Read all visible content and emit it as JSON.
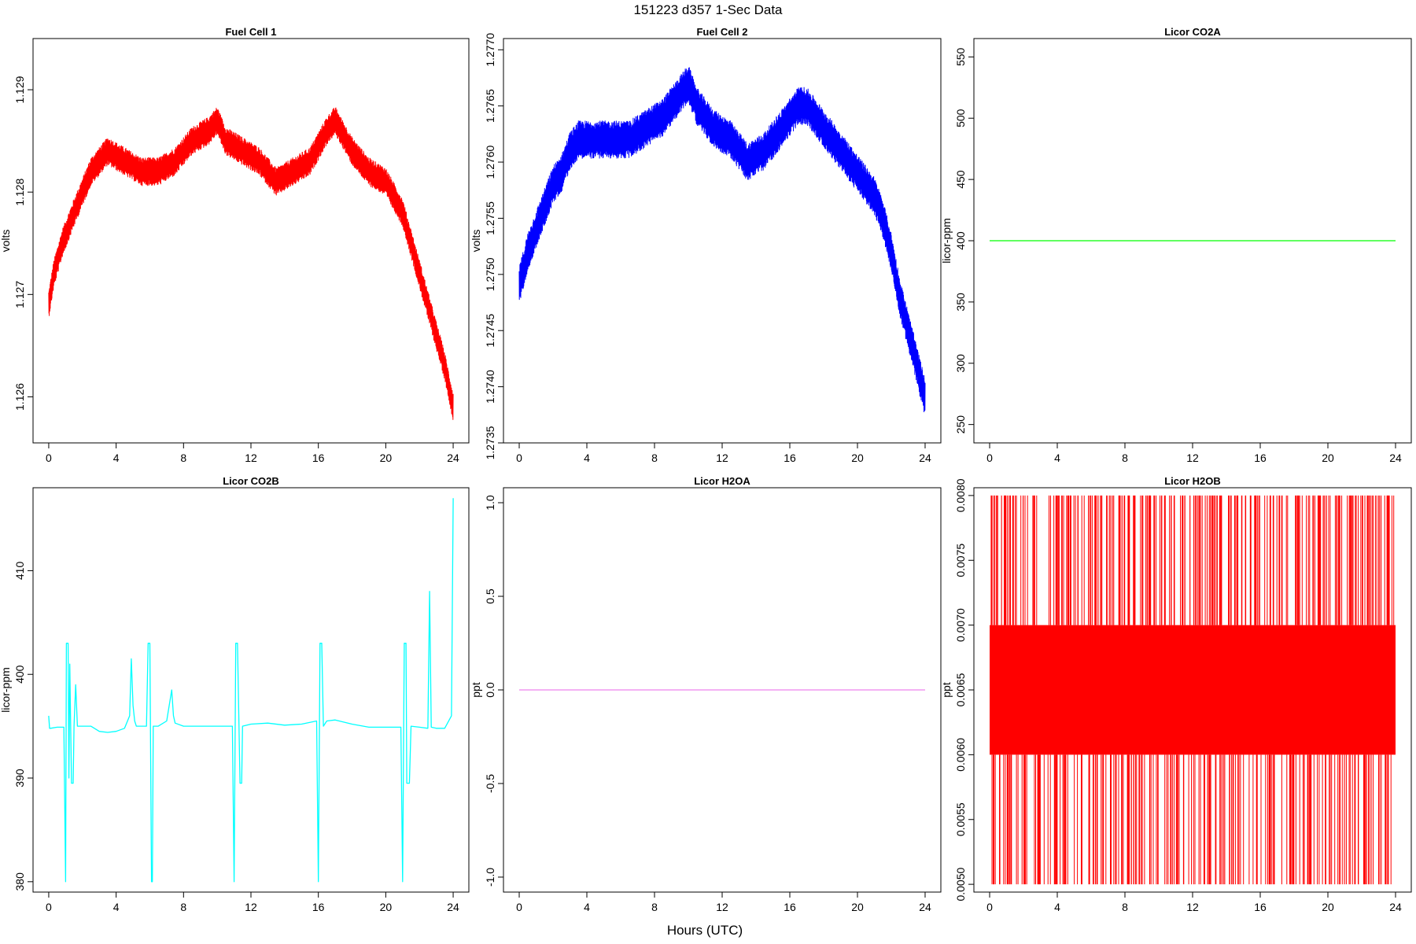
{
  "figure": {
    "title": "151223   d357   1-Sec Data",
    "xlabel": "Hours (UTC)"
  },
  "chart_data": [
    {
      "type": "line",
      "title": "Fuel Cell 1",
      "ylabel": "volts",
      "color": "#ff0000",
      "noise": 0.00028,
      "xlim": [
        0,
        24
      ],
      "ylim": [
        1.12555,
        1.1295
      ],
      "xticks": [
        0,
        4,
        8,
        12,
        16,
        20,
        24
      ],
      "yticks": [
        1.126,
        1.127,
        1.128,
        1.129
      ],
      "ytick_labels": [
        "1.126",
        "1.127",
        "1.128",
        "1.129"
      ],
      "series": [
        {
          "x": [
            0,
            0.3,
            0.8,
            1.5,
            2.5,
            3.5,
            4.5,
            5.5,
            6.5,
            7.5,
            8.5,
            9.5,
            10,
            10.5,
            11.5,
            12.5,
            13.5,
            14.5,
            15.5,
            16.5,
            17,
            18,
            19,
            20,
            21,
            21.5,
            22,
            22.5,
            23,
            23.5,
            24
          ],
          "y": [
            1.1269,
            1.1272,
            1.1275,
            1.1278,
            1.1282,
            1.1284,
            1.1283,
            1.1282,
            1.1282,
            1.1283,
            1.1285,
            1.1286,
            1.1287,
            1.1285,
            1.1284,
            1.1283,
            1.1281,
            1.1282,
            1.1283,
            1.1286,
            1.1287,
            1.1284,
            1.1282,
            1.1281,
            1.1278,
            1.1275,
            1.1272,
            1.1269,
            1.1266,
            1.1263,
            1.1259
          ]
        }
      ]
    },
    {
      "type": "line",
      "title": "Fuel Cell 2",
      "ylabel": "volts",
      "color": "#0000ff",
      "noise": 0.00034,
      "xlim": [
        0,
        24
      ],
      "ylim": [
        1.2735,
        1.2771
      ],
      "xticks": [
        0,
        4,
        8,
        12,
        16,
        20,
        24
      ],
      "yticks": [
        1.2735,
        1.274,
        1.2745,
        1.275,
        1.2755,
        1.276,
        1.2765,
        1.277
      ],
      "ytick_labels": [
        "1.2735",
        "1.2740",
        "1.2745",
        "1.2750",
        "1.2755",
        "1.2760",
        "1.2765",
        "1.2770"
      ],
      "series": [
        {
          "x": [
            0,
            0.5,
            1,
            1.5,
            2,
            2.5,
            3,
            3.5,
            4.5,
            5.5,
            6.5,
            7.5,
            8.5,
            9.5,
            10,
            10.5,
            11.5,
            12.5,
            13.5,
            14.5,
            15.5,
            16.5,
            17,
            18,
            19,
            20,
            20.5,
            21,
            21.5,
            22,
            22.5,
            23,
            23.5,
            24
          ],
          "y": [
            1.2749,
            1.2752,
            1.2754,
            1.2756,
            1.2758,
            1.2759,
            1.2761,
            1.2762,
            1.2762,
            1.2762,
            1.2762,
            1.2763,
            1.2764,
            1.2766,
            1.2767,
            1.2765,
            1.2763,
            1.2762,
            1.276,
            1.2761,
            1.2763,
            1.2765,
            1.2765,
            1.2763,
            1.2761,
            1.2759,
            1.2758,
            1.2757,
            1.2755,
            1.2752,
            1.2748,
            1.2745,
            1.2742,
            1.2739
          ]
        }
      ]
    },
    {
      "type": "line",
      "title": "Licor CO2A",
      "ylabel": "licor-ppm",
      "color": "#00ff00",
      "noise": 0,
      "xlim": [
        0,
        24
      ],
      "ylim": [
        235,
        565
      ],
      "xticks": [
        0,
        4,
        8,
        12,
        16,
        20,
        24
      ],
      "yticks": [
        250,
        300,
        350,
        400,
        450,
        500,
        550
      ],
      "ytick_labels": [
        "250",
        "300",
        "350",
        "400",
        "450",
        "500",
        "550"
      ],
      "series": [
        {
          "x": [
            0,
            24
          ],
          "y": [
            400,
            400
          ]
        }
      ]
    },
    {
      "type": "line",
      "title": "Licor CO2B",
      "ylabel": "licor-ppm",
      "color": "#00ffff",
      "noise": 0,
      "xlim": [
        0,
        24
      ],
      "ylim": [
        379,
        418
      ],
      "xticks": [
        0,
        4,
        8,
        12,
        16,
        20,
        24
      ],
      "yticks": [
        380,
        390,
        400,
        410
      ],
      "ytick_labels": [
        "380",
        "390",
        "400",
        "410"
      ],
      "series": [
        {
          "x": [
            0,
            0.05,
            0.1,
            0.5,
            0.9,
            1.0,
            1.05,
            1.15,
            1.2,
            1.25,
            1.35,
            1.45,
            1.5,
            1.6,
            1.7,
            1.75,
            1.85,
            2.0,
            2.5,
            3.0,
            3.5,
            4.0,
            4.5,
            4.8,
            4.9,
            5.0,
            5.1,
            5.2,
            5.5,
            5.8,
            5.9,
            6.0,
            6.1,
            6.15,
            6.2,
            6.35,
            6.5,
            7.0,
            7.3,
            7.4,
            7.5,
            8.0,
            9.0,
            10.0,
            10.9,
            11.0,
            11.1,
            11.2,
            11.35,
            11.45,
            11.5,
            12.0,
            13.0,
            14.0,
            15.0,
            15.9,
            16.0,
            16.1,
            16.2,
            16.3,
            16.5,
            17.0,
            18.0,
            19.0,
            20.0,
            20.9,
            21.0,
            21.1,
            21.2,
            21.25,
            21.4,
            21.5,
            22.0,
            22.5,
            22.6,
            22.7,
            23.0,
            23.5,
            23.9,
            24.0
          ],
          "y": [
            396,
            394.8,
            394.8,
            394.9,
            394.9,
            380,
            403,
            403,
            390,
            401,
            389.5,
            389.5,
            395,
            399,
            395,
            395,
            395,
            395,
            395,
            394.5,
            394.4,
            394.5,
            394.8,
            396,
            401.5,
            397,
            395.5,
            395,
            395,
            395,
            403,
            403,
            380,
            380,
            395,
            395,
            395,
            395.5,
            398.5,
            396,
            395.3,
            395,
            395,
            395,
            395,
            380,
            403,
            403,
            389.5,
            389.5,
            395,
            395.2,
            395.3,
            395.1,
            395.2,
            395.5,
            380,
            403,
            403,
            395,
            395.5,
            395.6,
            395.2,
            394.9,
            394.9,
            394.9,
            380,
            403,
            403,
            389.5,
            389.5,
            395,
            394.9,
            394.8,
            408,
            394.9,
            394.8,
            394.8,
            396,
            417
          ]
        }
      ]
    },
    {
      "type": "line",
      "title": "Licor H2OA",
      "ylabel": "ppt",
      "color": "#ee82ee",
      "noise": 0,
      "xlim": [
        0,
        24
      ],
      "ylim": [
        -1.08,
        1.08
      ],
      "xticks": [
        0,
        4,
        8,
        12,
        16,
        20,
        24
      ],
      "yticks": [
        -1.0,
        -0.5,
        0.0,
        0.5,
        1.0
      ],
      "ytick_labels": [
        "-1.0",
        "-0.5",
        "0.0",
        "0.5",
        "1.0"
      ],
      "series": [
        {
          "x": [
            0,
            24
          ],
          "y": [
            0,
            0
          ]
        }
      ]
    },
    {
      "type": "line",
      "title": "Licor H2OB",
      "ylabel": "ppt",
      "color": "#ff0000",
      "noise": 0,
      "xlim": [
        0,
        24
      ],
      "ylim": [
        0.00494,
        0.00806
      ],
      "xticks": [
        0,
        4,
        8,
        12,
        16,
        20,
        24
      ],
      "yticks": [
        0.005,
        0.0055,
        0.006,
        0.0065,
        0.007,
        0.0075,
        0.008
      ],
      "ytick_labels": [
        "0.0050",
        "0.0055",
        "0.0060",
        "0.0065",
        "0.0070",
        "0.0075",
        "0.0080"
      ],
      "series": [
        {
          "x": [
            0,
            24
          ],
          "y": [
            0.006,
            0.007
          ]
        }
      ],
      "levels": [
        0.005,
        0.006,
        0.007,
        0.008
      ]
    }
  ]
}
